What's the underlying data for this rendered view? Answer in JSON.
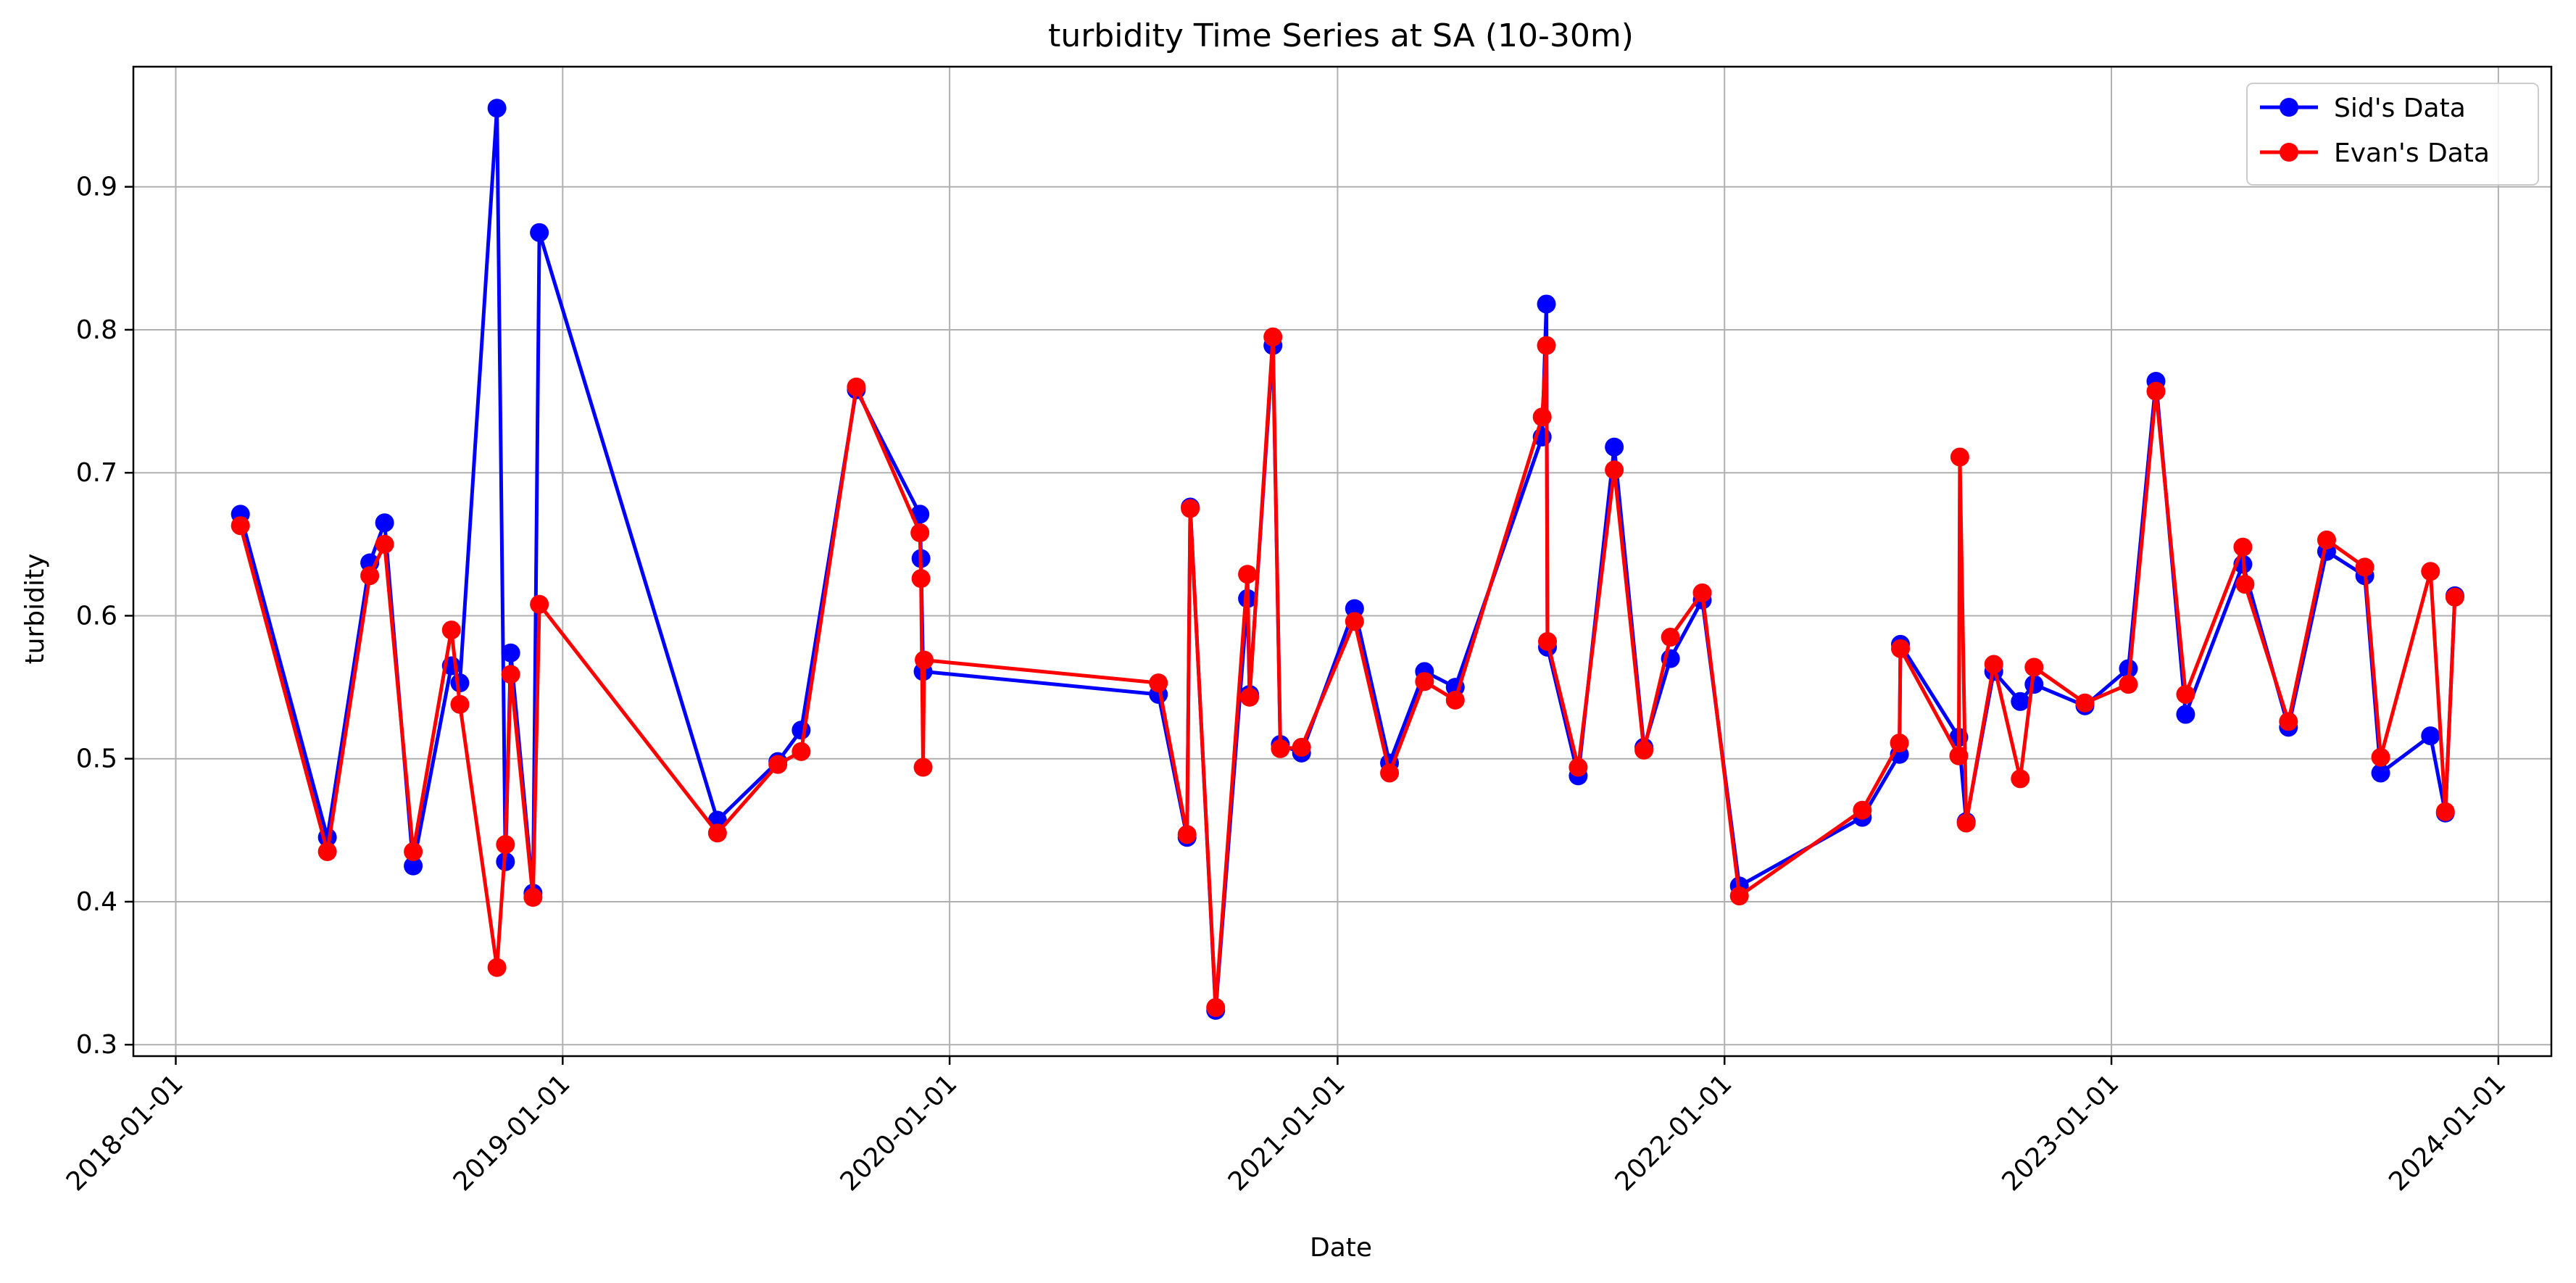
{
  "chart_data": {
    "type": "line",
    "title": "turbidity Time Series at SA (10-30m)",
    "xlabel": "Date",
    "ylabel": "turbidity",
    "x_axis": "date",
    "xlim": [
      "2017-11-22",
      "2024-02-20"
    ],
    "ylim": [
      0.292,
      0.984
    ],
    "x_ticks": [
      "2018-01-01",
      "2019-01-01",
      "2020-01-01",
      "2021-01-01",
      "2022-01-01",
      "2023-01-01",
      "2024-01-01"
    ],
    "y_ticks": [
      0.3,
      0.4,
      0.5,
      0.6,
      0.7,
      0.8,
      0.9
    ],
    "grid": true,
    "legend": "top-right",
    "series": [
      {
        "name": "Sid's Data",
        "color": "#0000ff",
        "points": [
          [
            "2018-03-03",
            0.671
          ],
          [
            "2018-05-24",
            0.445
          ],
          [
            "2018-07-03",
            0.637
          ],
          [
            "2018-07-17",
            0.665
          ],
          [
            "2018-08-13",
            0.425
          ],
          [
            "2018-09-18",
            0.565
          ],
          [
            "2018-09-26",
            0.553
          ],
          [
            "2018-10-31",
            0.955
          ],
          [
            "2018-11-08",
            0.428
          ],
          [
            "2018-11-13",
            0.574
          ],
          [
            "2018-12-04",
            0.406
          ],
          [
            "2018-12-10",
            0.868
          ],
          [
            "2019-05-27",
            0.457
          ],
          [
            "2019-07-23",
            0.498
          ],
          [
            "2019-08-14",
            0.52
          ],
          [
            "2019-10-05",
            0.758
          ],
          [
            "2019-12-04",
            0.671
          ],
          [
            "2019-12-05",
            0.64
          ],
          [
            "2019-12-07",
            0.561
          ],
          [
            "2020-07-16",
            0.545
          ],
          [
            "2020-08-12",
            0.445
          ],
          [
            "2020-08-15",
            0.676
          ],
          [
            "2020-09-08",
            0.324
          ],
          [
            "2020-10-08",
            0.612
          ],
          [
            "2020-10-10",
            0.545
          ],
          [
            "2020-11-01",
            0.789
          ],
          [
            "2020-11-08",
            0.51
          ],
          [
            "2020-11-28",
            0.504
          ],
          [
            "2021-01-17",
            0.605
          ],
          [
            "2021-02-19",
            0.497
          ],
          [
            "2021-03-24",
            0.561
          ],
          [
            "2021-04-22",
            0.55
          ],
          [
            "2021-07-13",
            0.725
          ],
          [
            "2021-07-17",
            0.818
          ],
          [
            "2021-07-18",
            0.578
          ],
          [
            "2021-08-16",
            0.488
          ],
          [
            "2021-09-19",
            0.718
          ],
          [
            "2021-10-17",
            0.508
          ],
          [
            "2021-11-11",
            0.57
          ],
          [
            "2021-12-11",
            0.611
          ],
          [
            "2022-01-15",
            0.411
          ],
          [
            "2022-05-11",
            0.459
          ],
          [
            "2022-06-15",
            0.503
          ],
          [
            "2022-06-16",
            0.58
          ],
          [
            "2022-08-10",
            0.515
          ],
          [
            "2022-08-17",
            0.456
          ],
          [
            "2022-09-12",
            0.561
          ],
          [
            "2022-10-07",
            0.54
          ],
          [
            "2022-10-20",
            0.552
          ],
          [
            "2022-12-07",
            0.537
          ],
          [
            "2023-01-17",
            0.563
          ],
          [
            "2023-02-12",
            0.764
          ],
          [
            "2023-03-12",
            0.531
          ],
          [
            "2023-05-05",
            0.636
          ],
          [
            "2023-06-17",
            0.522
          ],
          [
            "2023-07-23",
            0.645
          ],
          [
            "2023-08-28",
            0.628
          ],
          [
            "2023-09-12",
            0.49
          ],
          [
            "2023-10-29",
            0.516
          ],
          [
            "2023-11-12",
            0.462
          ],
          [
            "2023-11-21",
            0.614
          ]
        ]
      },
      {
        "name": "Evan's Data",
        "color": "#ff0000",
        "points": [
          [
            "2018-03-03",
            0.663
          ],
          [
            "2018-05-24",
            0.435
          ],
          [
            "2018-07-03",
            0.628
          ],
          [
            "2018-07-17",
            0.65
          ],
          [
            "2018-08-13",
            0.435
          ],
          [
            "2018-09-18",
            0.59
          ],
          [
            "2018-09-26",
            0.538
          ],
          [
            "2018-10-31",
            0.354
          ],
          [
            "2018-11-08",
            0.44
          ],
          [
            "2018-11-13",
            0.559
          ],
          [
            "2018-12-04",
            0.403
          ],
          [
            "2018-12-10",
            0.608
          ],
          [
            "2019-05-27",
            0.448
          ],
          [
            "2019-07-23",
            0.496
          ],
          [
            "2019-08-14",
            0.505
          ],
          [
            "2019-10-05",
            0.76
          ],
          [
            "2019-12-04",
            0.658
          ],
          [
            "2019-12-05",
            0.626
          ],
          [
            "2019-12-07",
            0.494
          ],
          [
            "2019-12-08",
            0.569
          ],
          [
            "2020-07-16",
            0.553
          ],
          [
            "2020-08-12",
            0.447
          ],
          [
            "2020-08-15",
            0.675
          ],
          [
            "2020-09-08",
            0.326
          ],
          [
            "2020-10-08",
            0.629
          ],
          [
            "2020-10-10",
            0.543
          ],
          [
            "2020-11-01",
            0.795
          ],
          [
            "2020-11-08",
            0.507
          ],
          [
            "2020-11-28",
            0.508
          ],
          [
            "2021-01-17",
            0.596
          ],
          [
            "2021-02-19",
            0.49
          ],
          [
            "2021-03-24",
            0.554
          ],
          [
            "2021-04-22",
            0.541
          ],
          [
            "2021-07-13",
            0.739
          ],
          [
            "2021-07-17",
            0.789
          ],
          [
            "2021-07-18",
            0.582
          ],
          [
            "2021-08-16",
            0.494
          ],
          [
            "2021-09-19",
            0.702
          ],
          [
            "2021-10-17",
            0.506
          ],
          [
            "2021-11-11",
            0.585
          ],
          [
            "2021-12-11",
            0.616
          ],
          [
            "2022-01-15",
            0.404
          ],
          [
            "2022-05-11",
            0.464
          ],
          [
            "2022-06-15",
            0.511
          ],
          [
            "2022-06-16",
            0.577
          ],
          [
            "2022-08-10",
            0.502
          ],
          [
            "2022-08-11",
            0.711
          ],
          [
            "2022-08-17",
            0.455
          ],
          [
            "2022-09-12",
            0.566
          ],
          [
            "2022-10-07",
            0.486
          ],
          [
            "2022-10-20",
            0.564
          ],
          [
            "2022-12-07",
            0.539
          ],
          [
            "2023-01-17",
            0.552
          ],
          [
            "2023-02-12",
            0.757
          ],
          [
            "2023-03-12",
            0.545
          ],
          [
            "2023-05-05",
            0.648
          ],
          [
            "2023-05-07",
            0.622
          ],
          [
            "2023-06-17",
            0.526
          ],
          [
            "2023-07-23",
            0.653
          ],
          [
            "2023-08-28",
            0.634
          ],
          [
            "2023-09-12",
            0.501
          ],
          [
            "2023-10-29",
            0.631
          ],
          [
            "2023-11-12",
            0.463
          ],
          [
            "2023-11-21",
            0.613
          ]
        ]
      }
    ]
  }
}
